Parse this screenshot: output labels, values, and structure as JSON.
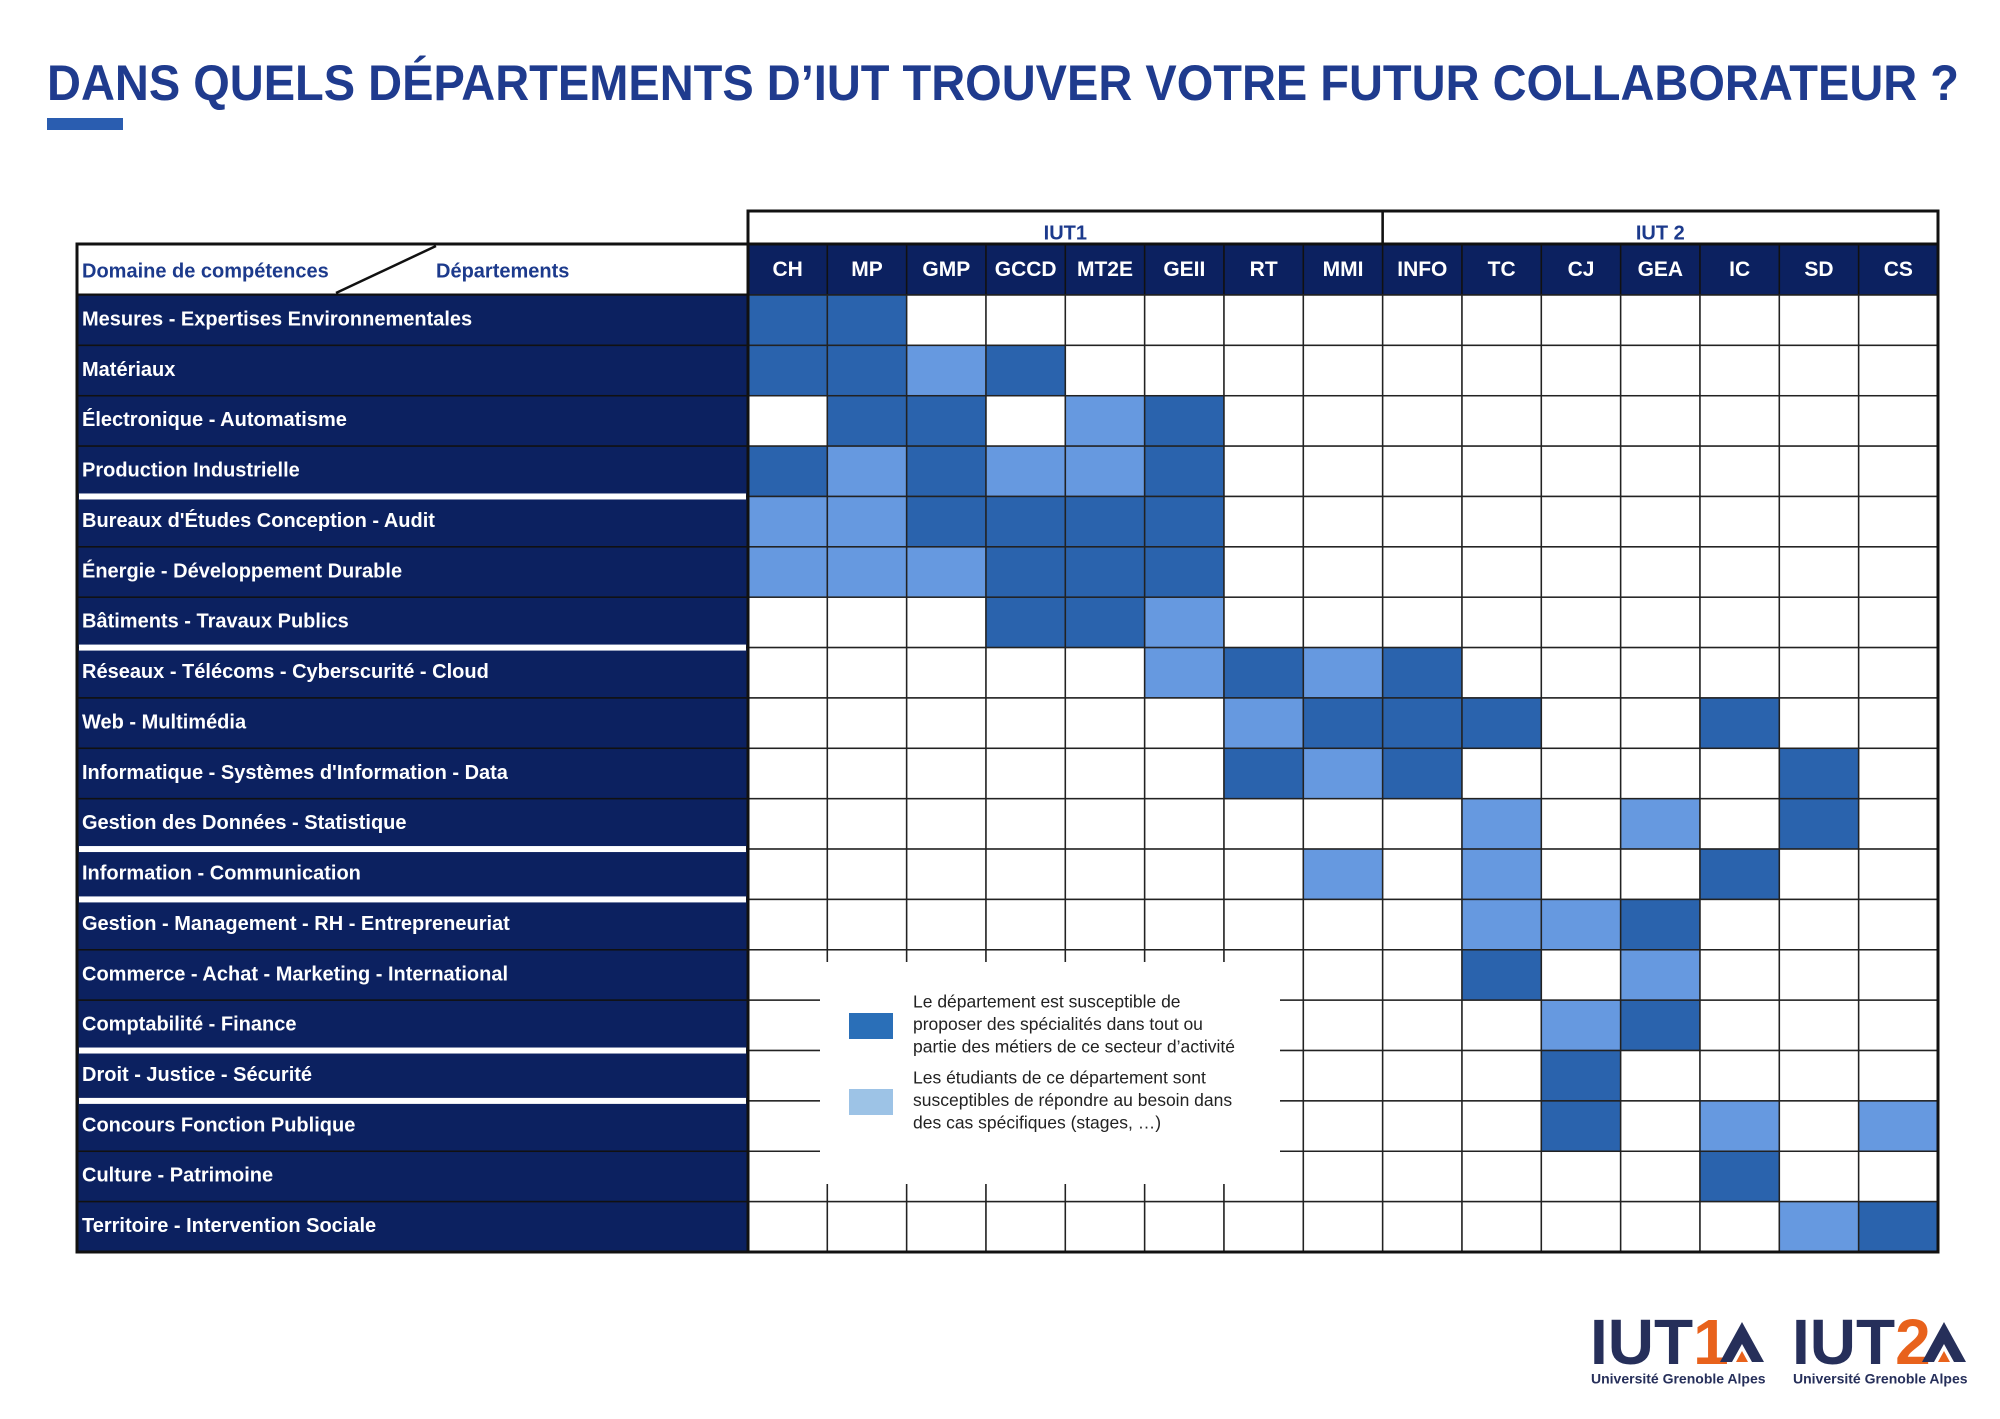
{
  "header": {
    "title": "DANS QUELS DÉPARTEMENTS D’IUT TROUVER VOTRE FUTUR COLLABORATEUR ?"
  },
  "table": {
    "corner": {
      "left": "Domaine de compétences",
      "right": "Départements"
    },
    "groups": [
      {
        "label": "IUT1",
        "departments": [
          "CH",
          "MP",
          "GMP",
          "GCCD",
          "MT2E",
          "GEII",
          "RT",
          "MMI"
        ]
      },
      {
        "label": "IUT 2",
        "departments": [
          "INFO",
          "TC",
          "CJ",
          "GEA",
          "IC",
          "SD",
          "CS"
        ]
      }
    ],
    "level_colors": [
      "#ffffff",
      "#6699e0",
      "#2a63ad"
    ],
    "rows": [
      {
        "domain": "Mesures - Expertises Environnementales",
        "cells": [
          2,
          2,
          0,
          0,
          0,
          0,
          0,
          0,
          0,
          0,
          0,
          0,
          0,
          0,
          0
        ]
      },
      {
        "domain": "Matériaux",
        "cells": [
          2,
          2,
          1,
          2,
          0,
          0,
          0,
          0,
          0,
          0,
          0,
          0,
          0,
          0,
          0
        ]
      },
      {
        "domain": "Électronique - Automatisme",
        "cells": [
          0,
          2,
          2,
          0,
          1,
          2,
          0,
          0,
          0,
          0,
          0,
          0,
          0,
          0,
          0
        ]
      },
      {
        "domain": "Production Industrielle",
        "cells": [
          2,
          1,
          2,
          1,
          1,
          2,
          0,
          0,
          0,
          0,
          0,
          0,
          0,
          0,
          0
        ]
      },
      {
        "domain": "Bureaux d'Études Conception - Audit",
        "cells": [
          1,
          1,
          2,
          2,
          2,
          2,
          0,
          0,
          0,
          0,
          0,
          0,
          0,
          0,
          0
        ]
      },
      {
        "domain": "Énergie - Développement Durable",
        "cells": [
          1,
          1,
          1,
          2,
          2,
          2,
          0,
          0,
          0,
          0,
          0,
          0,
          0,
          0,
          0
        ]
      },
      {
        "domain": "Bâtiments - Travaux Publics",
        "cells": [
          0,
          0,
          0,
          2,
          2,
          1,
          0,
          0,
          0,
          0,
          0,
          0,
          0,
          0,
          0
        ]
      },
      {
        "domain": "Réseaux - Télécoms - Cyberscurité - Cloud",
        "cells": [
          0,
          0,
          0,
          0,
          0,
          1,
          2,
          1,
          2,
          0,
          0,
          0,
          0,
          0,
          0
        ]
      },
      {
        "domain": "Web - Multimédia",
        "cells": [
          0,
          0,
          0,
          0,
          0,
          0,
          1,
          2,
          2,
          2,
          0,
          0,
          2,
          0,
          0
        ]
      },
      {
        "domain": "Informatique - Systèmes d'Information - Data",
        "cells": [
          0,
          0,
          0,
          0,
          0,
          0,
          2,
          1,
          2,
          0,
          0,
          0,
          0,
          2,
          0
        ]
      },
      {
        "domain": "Gestion des Données - Statistique",
        "cells": [
          0,
          0,
          0,
          0,
          0,
          0,
          0,
          0,
          0,
          1,
          0,
          1,
          0,
          2,
          0
        ]
      },
      {
        "domain": "Information - Communication",
        "cells": [
          0,
          0,
          0,
          0,
          0,
          0,
          0,
          1,
          0,
          1,
          0,
          0,
          2,
          0,
          0
        ]
      },
      {
        "domain": "Gestion - Management - RH - Entrepreneuriat",
        "cells": [
          0,
          0,
          0,
          0,
          0,
          0,
          0,
          0,
          0,
          1,
          1,
          2,
          0,
          0,
          0
        ]
      },
      {
        "domain": "Commerce - Achat - Marketing - International",
        "cells": [
          0,
          0,
          0,
          0,
          0,
          0,
          0,
          0,
          0,
          2,
          0,
          1,
          0,
          0,
          0
        ]
      },
      {
        "domain": "Comptabilité - Finance",
        "cells": [
          0,
          0,
          0,
          0,
          0,
          0,
          0,
          0,
          0,
          0,
          1,
          2,
          0,
          0,
          0
        ]
      },
      {
        "domain": "Droit - Justice - Sécurité",
        "cells": [
          0,
          0,
          0,
          0,
          0,
          0,
          0,
          0,
          0,
          0,
          2,
          0,
          0,
          0,
          0
        ]
      },
      {
        "domain": "Concours Fonction Publique",
        "cells": [
          0,
          0,
          0,
          0,
          0,
          0,
          0,
          0,
          0,
          0,
          2,
          0,
          1,
          0,
          1
        ]
      },
      {
        "domain": "Culture - Patrimoine",
        "cells": [
          0,
          0,
          0,
          0,
          0,
          0,
          0,
          0,
          0,
          0,
          0,
          0,
          2,
          0,
          0
        ]
      },
      {
        "domain": "Territoire - Intervention Sociale",
        "cells": [
          0,
          0,
          0,
          0,
          0,
          0,
          0,
          0,
          0,
          0,
          0,
          0,
          0,
          1,
          2
        ]
      }
    ]
  },
  "legend": [
    {
      "color": "#2a6fb8",
      "lines": [
        "Le département est susceptible de",
        "proposer des spécialités dans tout ou",
        "partie des métiers de ce secteur d’activité"
      ]
    },
    {
      "color": "#9dc3e6",
      "lines": [
        "Les étudiants de ce département sont",
        "susceptibles de répondre au besoin dans",
        "des cas spécifiques (stages, …)"
      ]
    }
  ],
  "logos": [
    {
      "prefix": "IUT",
      "number": 1,
      "caption": "Université Grenoble Alpes"
    },
    {
      "prefix": "IUT",
      "number": 2,
      "caption": "Université Grenoble Alpes"
    }
  ]
}
